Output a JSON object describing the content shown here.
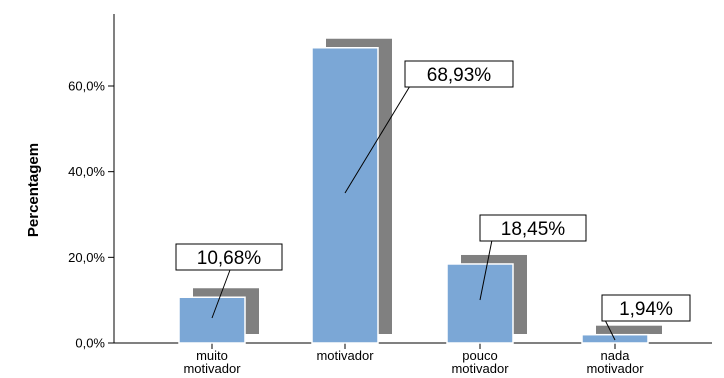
{
  "chart_data": {
    "type": "bar",
    "title": "",
    "xlabel": "",
    "ylabel": "Percentagem",
    "ylim": [
      0,
      75
    ],
    "yticks": [
      "0,0%",
      "20,0%",
      "40,0%",
      "60,0%"
    ],
    "ytick_values": [
      0,
      20,
      40,
      60
    ],
    "categories": [
      [
        "muito",
        "motivador"
      ],
      [
        "motivador"
      ],
      [
        "pouco",
        "motivador"
      ],
      [
        "nada",
        "motivador"
      ]
    ],
    "values": [
      10.68,
      68.93,
      18.45,
      1.94
    ],
    "data_labels": [
      "10,68%",
      "68,93%",
      "18,45%",
      "1,94%"
    ],
    "bar_color": "#7ba7d6",
    "shadow_color": "#808080",
    "grid": false,
    "legend": "none"
  }
}
